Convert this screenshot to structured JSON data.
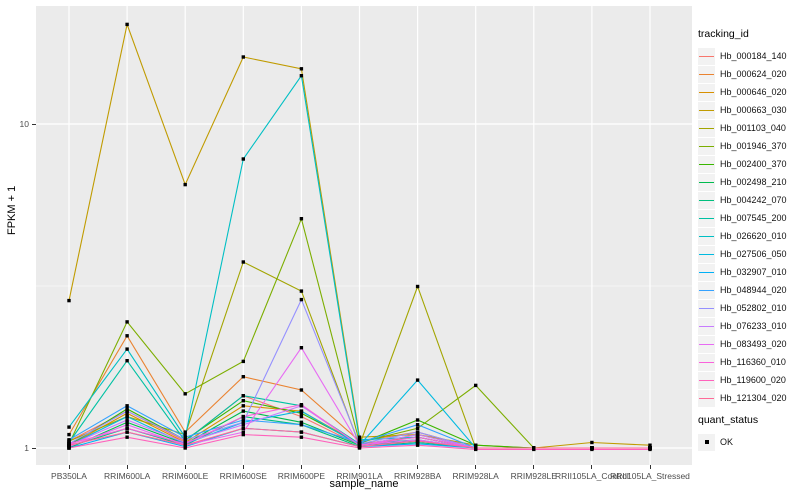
{
  "figure": {
    "background": "#FFFFFF",
    "panel_background": "#EBEBEB",
    "grid_color": "#FFFFFF",
    "tick_color": "#333333",
    "tick_label_color": "#4D4D4D"
  },
  "chart_data": {
    "type": "line",
    "title": "",
    "xlabel": "sample_name",
    "ylabel": "FPKM + 1",
    "y_scale": "log10",
    "y_ticks": [
      1,
      10
    ],
    "y_minor_ticks": [
      3.162
    ],
    "ylim": [
      0.89,
      23
    ],
    "grid": true,
    "legend_position": "right",
    "point_marker": "black-square",
    "legend_title": "tracking_id",
    "categories": [
      "PB350LA",
      "RRIM600LA",
      "RRIM600LE",
      "RRIM600SE",
      "RRIM600PE",
      "RRIM901LA",
      "RRIM928BA",
      "RRIM928LA",
      "RRIM928LE",
      "RRII105LA_Control",
      "RRII105LA_Stressed"
    ],
    "series": [
      {
        "name": "Hb_000184_140",
        "color": "#F8766D",
        "values": [
          1.05,
          1.3,
          1.05,
          1.45,
          1.25,
          1.02,
          1.1,
          1.0,
          1.0,
          1.0,
          1.0
        ]
      },
      {
        "name": "Hb_000624_020",
        "color": "#EA8331",
        "values": [
          1.1,
          2.22,
          1.12,
          1.66,
          1.51,
          1.05,
          1.12,
          1.0,
          1.0,
          1.0,
          1.0
        ]
      },
      {
        "name": "Hb_000646_020",
        "color": "#D89000",
        "values": [
          1.02,
          1.28,
          1.04,
          1.35,
          1.3,
          1.03,
          1.08,
          1.0,
          1.0,
          1.0,
          1.0
        ]
      },
      {
        "name": "Hb_000663_030",
        "color": "#C09B00",
        "values": [
          2.85,
          20.3,
          6.5,
          16.1,
          14.8,
          1.08,
          1.1,
          1.02,
          1.0,
          1.04,
          1.02
        ]
      },
      {
        "name": "Hb_001103_040",
        "color": "#A3A500",
        "values": [
          1.05,
          1.25,
          1.1,
          3.75,
          3.05,
          1.02,
          3.15,
          1.0,
          1.0,
          1.0,
          1.0
        ]
      },
      {
        "name": "Hb_001946_370",
        "color": "#7CAE00",
        "values": [
          1.03,
          2.45,
          1.47,
          1.85,
          5.1,
          1.04,
          1.15,
          1.56,
          1.0,
          1.0,
          1.0
        ]
      },
      {
        "name": "Hb_002400_370",
        "color": "#39B600",
        "values": [
          1.02,
          1.32,
          1.06,
          1.4,
          1.28,
          1.03,
          1.22,
          1.02,
          1.0,
          1.0,
          1.0
        ]
      },
      {
        "name": "Hb_002498_210",
        "color": "#00BB4E",
        "values": [
          1.0,
          1.2,
          1.03,
          1.3,
          1.2,
          1.02,
          1.05,
          1.0,
          1.0,
          1.0,
          1.0
        ]
      },
      {
        "name": "Hb_004242_070",
        "color": "#00BF7D",
        "values": [
          1.01,
          1.15,
          1.02,
          1.25,
          1.18,
          1.01,
          1.04,
          1.0,
          1.0,
          1.0,
          1.0
        ]
      },
      {
        "name": "Hb_007545_200",
        "color": "#00C1A3",
        "values": [
          1.04,
          1.86,
          1.05,
          1.45,
          1.35,
          1.03,
          1.06,
          1.0,
          1.0,
          1.0,
          1.0
        ]
      },
      {
        "name": "Hb_026620_010",
        "color": "#00BFC4",
        "values": [
          1.16,
          2.02,
          1.08,
          7.8,
          14.1,
          1.06,
          1.08,
          1.0,
          1.0,
          1.0,
          1.0
        ]
      },
      {
        "name": "Hb_027506_050",
        "color": "#00BAE0",
        "values": [
          1.02,
          1.25,
          1.03,
          1.2,
          1.3,
          1.02,
          1.62,
          1.0,
          1.0,
          1.0,
          1.0
        ]
      },
      {
        "name": "Hb_032907_010",
        "color": "#00B0F6",
        "values": [
          1.0,
          1.12,
          1.01,
          1.15,
          1.12,
          1.01,
          1.03,
          1.0,
          1.0,
          1.0,
          1.0
        ]
      },
      {
        "name": "Hb_048944_020",
        "color": "#35A2FF",
        "values": [
          1.06,
          1.35,
          1.08,
          1.22,
          1.18,
          1.04,
          1.18,
          1.0,
          1.0,
          1.0,
          1.0
        ]
      },
      {
        "name": "Hb_052802_010",
        "color": "#9590FF",
        "values": [
          1.03,
          1.3,
          1.06,
          1.2,
          2.87,
          1.03,
          1.12,
          1.0,
          1.0,
          1.0,
          1.0
        ]
      },
      {
        "name": "Hb_076233_010",
        "color": "#C77CFF",
        "values": [
          1.02,
          1.22,
          1.04,
          1.18,
          1.35,
          1.02,
          1.1,
          1.0,
          1.0,
          1.0,
          1.0
        ]
      },
      {
        "name": "Hb_083493_020",
        "color": "#E76BF3",
        "values": [
          1.01,
          1.18,
          1.02,
          1.12,
          2.04,
          1.02,
          1.06,
          1.0,
          1.0,
          1.0,
          1.0
        ]
      },
      {
        "name": "Hb_116360_010",
        "color": "#FA62DB",
        "values": [
          1.03,
          1.15,
          1.03,
          1.25,
          1.36,
          1.02,
          1.08,
          1.0,
          1.0,
          1.0,
          1.0
        ]
      },
      {
        "name": "Hb_119600_020",
        "color": "#FF62BC",
        "values": [
          1.0,
          1.08,
          1.0,
          1.1,
          1.08,
          1.0,
          1.02,
          0.99,
          0.99,
          0.99,
          0.99
        ]
      },
      {
        "name": "Hb_121304_020",
        "color": "#FF6A98",
        "values": [
          1.02,
          1.12,
          1.02,
          1.15,
          1.12,
          1.01,
          1.05,
          1.0,
          1.0,
          1.0,
          1.0
        ]
      }
    ],
    "quant_legend": {
      "title": "quant_status",
      "entries": [
        {
          "label": "OK",
          "marker": "black-square"
        }
      ]
    }
  }
}
